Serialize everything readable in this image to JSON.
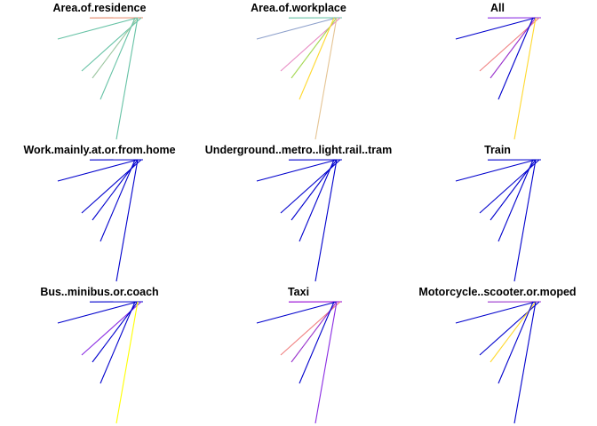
{
  "colors": {
    "teal": "#66c2a5",
    "salmon": "#e5896a",
    "slate_blue": "#8da0cb",
    "pink": "#e78ac3",
    "yellow_green": "#a6d854",
    "gold": "#ffd92f",
    "tan": "#e5c494",
    "gray_green": "#9cc6a0",
    "blue_violet": "#8a2be2",
    "medium_blue": "#0000cd",
    "dark_orange": "#ff8c00",
    "yellow": "#ffff00",
    "violet": "#9400d3",
    "light_coral": "#f08080",
    "dark_violet": "#9932cc"
  },
  "chart_data": [
    {
      "type": "line",
      "title": "Area.of.residence",
      "segments": [
        {
          "x": [
            -0.6,
            1.8
          ],
          "y": [
            0,
            0.02
          ],
          "color": "salmon"
        },
        {
          "x": [
            0,
            3.0
          ],
          "y": [
            0,
            2.4
          ],
          "color": "teal"
        },
        {
          "x": [
            -0.4,
            2.1
          ],
          "y": [
            0,
            6.0
          ],
          "color": "teal"
        },
        {
          "x": [
            0,
            1.7
          ],
          "y": [
            0,
            6.8
          ],
          "color": "gray_green"
        },
        {
          "x": [
            0.3,
            1.4
          ],
          "y": [
            0,
            9.2
          ],
          "color": "teal"
        },
        {
          "x": [
            0,
            0.8
          ],
          "y": [
            0,
            13.7
          ],
          "color": "teal"
        }
      ]
    },
    {
      "type": "line",
      "title": "Area.of.workplace",
      "segments": [
        {
          "x": [
            -0.6,
            1.8
          ],
          "y": [
            0,
            0.02
          ],
          "color": "teal"
        },
        {
          "x": [
            0,
            3.0
          ],
          "y": [
            0,
            2.4
          ],
          "color": "slate_blue"
        },
        {
          "x": [
            -0.4,
            2.1
          ],
          "y": [
            0,
            6.0
          ],
          "color": "pink"
        },
        {
          "x": [
            0,
            1.7
          ],
          "y": [
            0,
            6.8
          ],
          "color": "yellow_green"
        },
        {
          "x": [
            0.3,
            1.4
          ],
          "y": [
            0,
            9.2
          ],
          "color": "gold"
        },
        {
          "x": [
            0,
            0.8
          ],
          "y": [
            0,
            13.7
          ],
          "color": "tan"
        }
      ]
    },
    {
      "type": "line",
      "title": "All",
      "segments": [
        {
          "x": [
            -0.6,
            1.8
          ],
          "y": [
            0,
            0.02
          ],
          "color": "blue_violet"
        },
        {
          "x": [
            0,
            3.0
          ],
          "y": [
            0,
            2.4
          ],
          "color": "medium_blue"
        },
        {
          "x": [
            -0.4,
            2.1
          ],
          "y": [
            0,
            6.0
          ],
          "color": "light_coral"
        },
        {
          "x": [
            0,
            1.7
          ],
          "y": [
            0,
            6.8
          ],
          "color": "dark_violet"
        },
        {
          "x": [
            0.3,
            1.4
          ],
          "y": [
            0,
            9.2
          ],
          "color": "medium_blue"
        },
        {
          "x": [
            0,
            0.8
          ],
          "y": [
            0,
            13.7
          ],
          "color": "gold"
        }
      ]
    },
    {
      "type": "line",
      "title": "Work.mainly.at.or.from.home",
      "segments": [
        {
          "x": [
            -0.6,
            1.8
          ],
          "y": [
            0,
            0.02
          ],
          "color": "medium_blue"
        },
        {
          "x": [
            0,
            3.0
          ],
          "y": [
            0,
            2.4
          ],
          "color": "medium_blue"
        },
        {
          "x": [
            -0.4,
            2.1
          ],
          "y": [
            0,
            6.0
          ],
          "color": "medium_blue"
        },
        {
          "x": [
            0,
            1.7
          ],
          "y": [
            0,
            6.8
          ],
          "color": "medium_blue"
        },
        {
          "x": [
            0.3,
            1.4
          ],
          "y": [
            0,
            9.2
          ],
          "color": "medium_blue"
        },
        {
          "x": [
            0,
            0.8
          ],
          "y": [
            0,
            13.7
          ],
          "color": "medium_blue"
        }
      ]
    },
    {
      "type": "line",
      "title": "Underground..metro..light.rail..tram",
      "segments": [
        {
          "x": [
            -0.6,
            1.8
          ],
          "y": [
            0,
            0.02
          ],
          "color": "medium_blue"
        },
        {
          "x": [
            0,
            3.0
          ],
          "y": [
            0,
            2.4
          ],
          "color": "medium_blue"
        },
        {
          "x": [
            -0.4,
            2.1
          ],
          "y": [
            0,
            6.0
          ],
          "color": "medium_blue"
        },
        {
          "x": [
            0,
            1.7
          ],
          "y": [
            0,
            6.8
          ],
          "color": "medium_blue"
        },
        {
          "x": [
            0.3,
            1.4
          ],
          "y": [
            0,
            9.2
          ],
          "color": "medium_blue"
        },
        {
          "x": [
            0,
            0.8
          ],
          "y": [
            0,
            13.7
          ],
          "color": "medium_blue"
        }
      ]
    },
    {
      "type": "line",
      "title": "Train",
      "segments": [
        {
          "x": [
            -0.6,
            1.8
          ],
          "y": [
            0,
            0.02
          ],
          "color": "medium_blue"
        },
        {
          "x": [
            0,
            3.0
          ],
          "y": [
            0,
            2.4
          ],
          "color": "medium_blue"
        },
        {
          "x": [
            -0.4,
            2.1
          ],
          "y": [
            0,
            6.0
          ],
          "color": "medium_blue"
        },
        {
          "x": [
            0,
            1.7
          ],
          "y": [
            0,
            6.8
          ],
          "color": "medium_blue"
        },
        {
          "x": [
            0.3,
            1.4
          ],
          "y": [
            0,
            9.2
          ],
          "color": "medium_blue"
        },
        {
          "x": [
            0,
            0.8
          ],
          "y": [
            0,
            13.7
          ],
          "color": "medium_blue"
        }
      ]
    },
    {
      "type": "line",
      "title": "Bus..minibus.or.coach",
      "segments": [
        {
          "x": [
            -0.6,
            1.8
          ],
          "y": [
            0,
            0.02
          ],
          "color": "medium_blue"
        },
        {
          "x": [
            0,
            3.0
          ],
          "y": [
            0,
            2.4
          ],
          "color": "medium_blue"
        },
        {
          "x": [
            -0.4,
            2.1
          ],
          "y": [
            0,
            6.0
          ],
          "color": "blue_violet"
        },
        {
          "x": [
            0,
            1.7
          ],
          "y": [
            0,
            6.8
          ],
          "color": "medium_blue"
        },
        {
          "x": [
            0.3,
            1.4
          ],
          "y": [
            0,
            9.2
          ],
          "color": "medium_blue"
        },
        {
          "x": [
            0,
            0.8
          ],
          "y": [
            0,
            13.7
          ],
          "color": "yellow"
        }
      ]
    },
    {
      "type": "line",
      "title": "Taxi",
      "segments": [
        {
          "x": [
            -0.6,
            1.8
          ],
          "y": [
            0,
            0.02
          ],
          "color": "violet"
        },
        {
          "x": [
            0,
            3.0
          ],
          "y": [
            0,
            2.4
          ],
          "color": "medium_blue"
        },
        {
          "x": [
            -0.4,
            2.1
          ],
          "y": [
            0,
            6.0
          ],
          "color": "light_coral"
        },
        {
          "x": [
            0,
            1.7
          ],
          "y": [
            0,
            6.8
          ],
          "color": "dark_violet"
        },
        {
          "x": [
            0.3,
            1.4
          ],
          "y": [
            0,
            9.2
          ],
          "color": "medium_blue"
        },
        {
          "x": [
            0,
            0.8
          ],
          "y": [
            0,
            13.7
          ],
          "color": "blue_violet"
        }
      ]
    },
    {
      "type": "line",
      "title": "Motorcycle..scooter.or.moped",
      "segments": [
        {
          "x": [
            -0.6,
            1.8
          ],
          "y": [
            0,
            0.02
          ],
          "color": "dark_violet"
        },
        {
          "x": [
            0,
            3.0
          ],
          "y": [
            0,
            2.4
          ],
          "color": "medium_blue"
        },
        {
          "x": [
            -0.4,
            2.1
          ],
          "y": [
            0,
            6.0
          ],
          "color": "medium_blue"
        },
        {
          "x": [
            0,
            1.7
          ],
          "y": [
            0,
            6.8
          ],
          "color": "gold"
        },
        {
          "x": [
            0.3,
            1.4
          ],
          "y": [
            0,
            9.2
          ],
          "color": "medium_blue"
        },
        {
          "x": [
            0,
            0.8
          ],
          "y": [
            0,
            13.7
          ],
          "color": "medium_blue"
        }
      ]
    }
  ]
}
